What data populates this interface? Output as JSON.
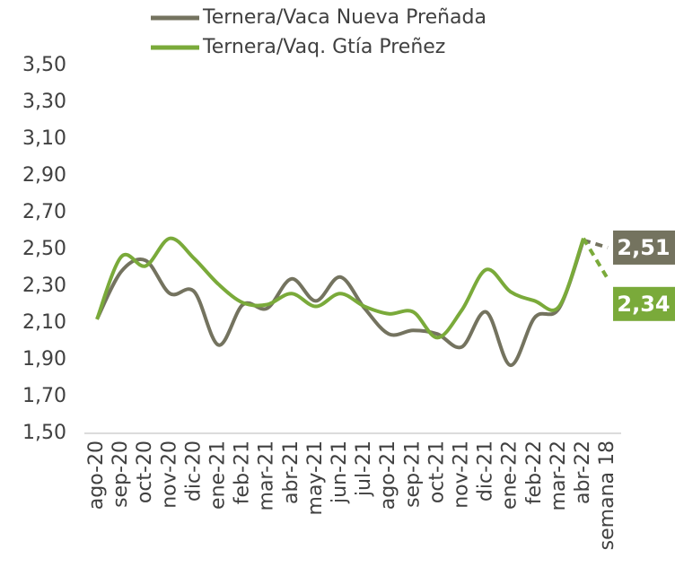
{
  "chart_data": {
    "type": "line",
    "categories": [
      "ago-20",
      "sep-20",
      "oct-20",
      "nov-20",
      "dic-20",
      "ene-21",
      "feb-21",
      "mar-21",
      "abr-21",
      "may-21",
      "jun-21",
      "jul-21",
      "ago-21",
      "sep-21",
      "oct-21",
      "nov-21",
      "dic-21",
      "ene-22",
      "feb-22",
      "mar-22",
      "abr-22",
      "semana 18"
    ],
    "series": [
      {
        "name": "Ternera/Vaca Nueva Preñada",
        "color": "#74735f",
        "values": [
          2.12,
          2.38,
          2.44,
          2.26,
          2.27,
          1.98,
          2.2,
          2.18,
          2.34,
          2.22,
          2.35,
          2.18,
          2.04,
          2.06,
          2.04,
          1.97,
          2.16,
          1.87,
          2.13,
          2.18,
          2.55,
          2.51
        ],
        "value_labels": {
          "21": "2,51"
        }
      },
      {
        "name": "Ternera/Vaq. Gtía Preñez",
        "color": "#7aaa3a",
        "values": [
          2.12,
          2.46,
          2.41,
          2.56,
          2.45,
          2.31,
          2.21,
          2.2,
          2.26,
          2.19,
          2.26,
          2.19,
          2.15,
          2.16,
          2.02,
          2.17,
          2.39,
          2.27,
          2.22,
          2.19,
          2.56,
          2.34
        ],
        "value_labels": {
          "21": "2,34"
        }
      }
    ],
    "ylim": [
      1.5,
      3.5
    ],
    "yticks": [
      {
        "value": 1.5,
        "label": "1,50"
      },
      {
        "value": 1.7,
        "label": "1,70"
      },
      {
        "value": 1.9,
        "label": "1,90"
      },
      {
        "value": 2.1,
        "label": "2,10"
      },
      {
        "value": 2.3,
        "label": "2,30"
      },
      {
        "value": 2.5,
        "label": "2,50"
      },
      {
        "value": 2.7,
        "label": "2,70"
      },
      {
        "value": 2.9,
        "label": "2,90"
      },
      {
        "value": 3.1,
        "label": "3,10"
      },
      {
        "value": 3.3,
        "label": "3,30"
      },
      {
        "value": 3.5,
        "label": "3,50"
      }
    ],
    "legend": "top"
  }
}
